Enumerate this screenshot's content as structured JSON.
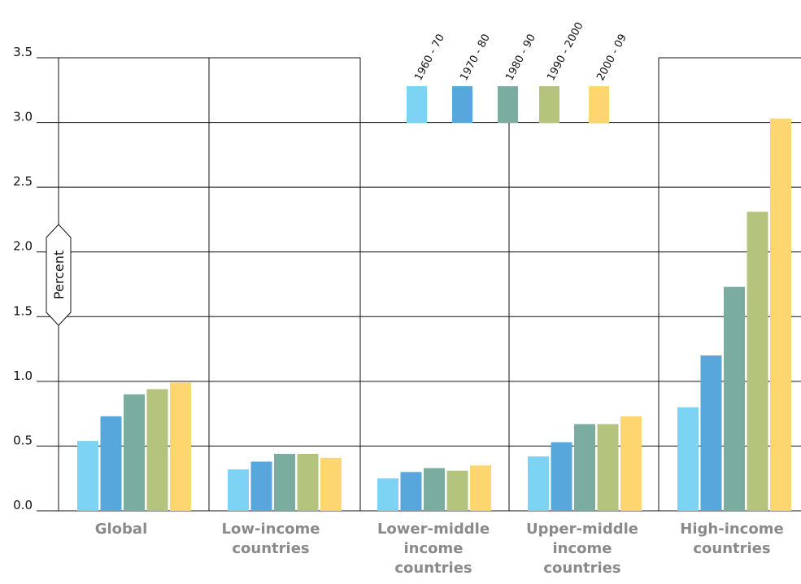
{
  "chart_data": {
    "type": "bar",
    "xlabel": "",
    "ylabel": "Percent",
    "ylim": [
      0,
      3.5
    ],
    "yticks": [
      "0.0",
      "0.5",
      "1.0",
      "1.5",
      "2.0",
      "2.5",
      "3.0",
      "3.5"
    ],
    "grid": true,
    "legend_position": "top-center",
    "categories": [
      "Global",
      "Low-income countries",
      "Lower-middle income countries",
      "Upper-middle income countries",
      "High-income countries"
    ],
    "category_lines": [
      [
        "Global"
      ],
      [
        "Low-income",
        "countries"
      ],
      [
        "Lower-middle",
        "income",
        "countries"
      ],
      [
        "Upper-middle",
        "income",
        "countries"
      ],
      [
        "High-income",
        "countries"
      ]
    ],
    "series": [
      {
        "name": "1960 - 70",
        "color": "#7dd3f4",
        "values": [
          0.54,
          0.32,
          0.25,
          0.42,
          0.8
        ]
      },
      {
        "name": "1970 - 80",
        "color": "#58a7dc",
        "values": [
          0.73,
          0.38,
          0.3,
          0.53,
          1.2
        ]
      },
      {
        "name": "1980 - 90",
        "color": "#7aada0",
        "values": [
          0.9,
          0.44,
          0.33,
          0.67,
          1.73
        ]
      },
      {
        "name": "1990 - 2000",
        "color": "#b5c47c",
        "values": [
          0.94,
          0.44,
          0.31,
          0.67,
          2.31
        ]
      },
      {
        "name": "2000 - 09",
        "color": "#fdd670",
        "values": [
          0.99,
          0.41,
          0.35,
          0.73,
          3.03
        ]
      }
    ]
  }
}
